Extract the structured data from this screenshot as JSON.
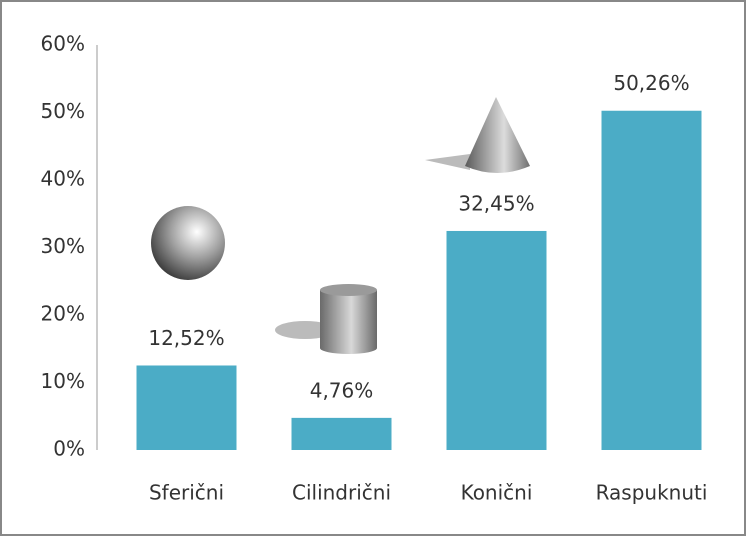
{
  "chart_data": {
    "type": "bar",
    "categories": [
      "Sferični",
      "Cilindrični",
      "Konični",
      "Raspuknuti"
    ],
    "values": [
      12.52,
      4.76,
      32.45,
      50.26
    ],
    "value_labels": [
      "12,52%",
      "4,76%",
      "32,45%",
      "50,26%"
    ],
    "color": "#4bacc6",
    "ylim": [
      0,
      60
    ],
    "yticks": [
      {
        "value": 0,
        "label": "0%"
      },
      {
        "value": 10,
        "label": "10%"
      },
      {
        "value": 20,
        "label": "20%"
      },
      {
        "value": 30,
        "label": "30%"
      },
      {
        "value": 40,
        "label": "40%"
      },
      {
        "value": 50,
        "label": "50%"
      },
      {
        "value": 60,
        "label": "60%"
      }
    ],
    "grid": false
  }
}
